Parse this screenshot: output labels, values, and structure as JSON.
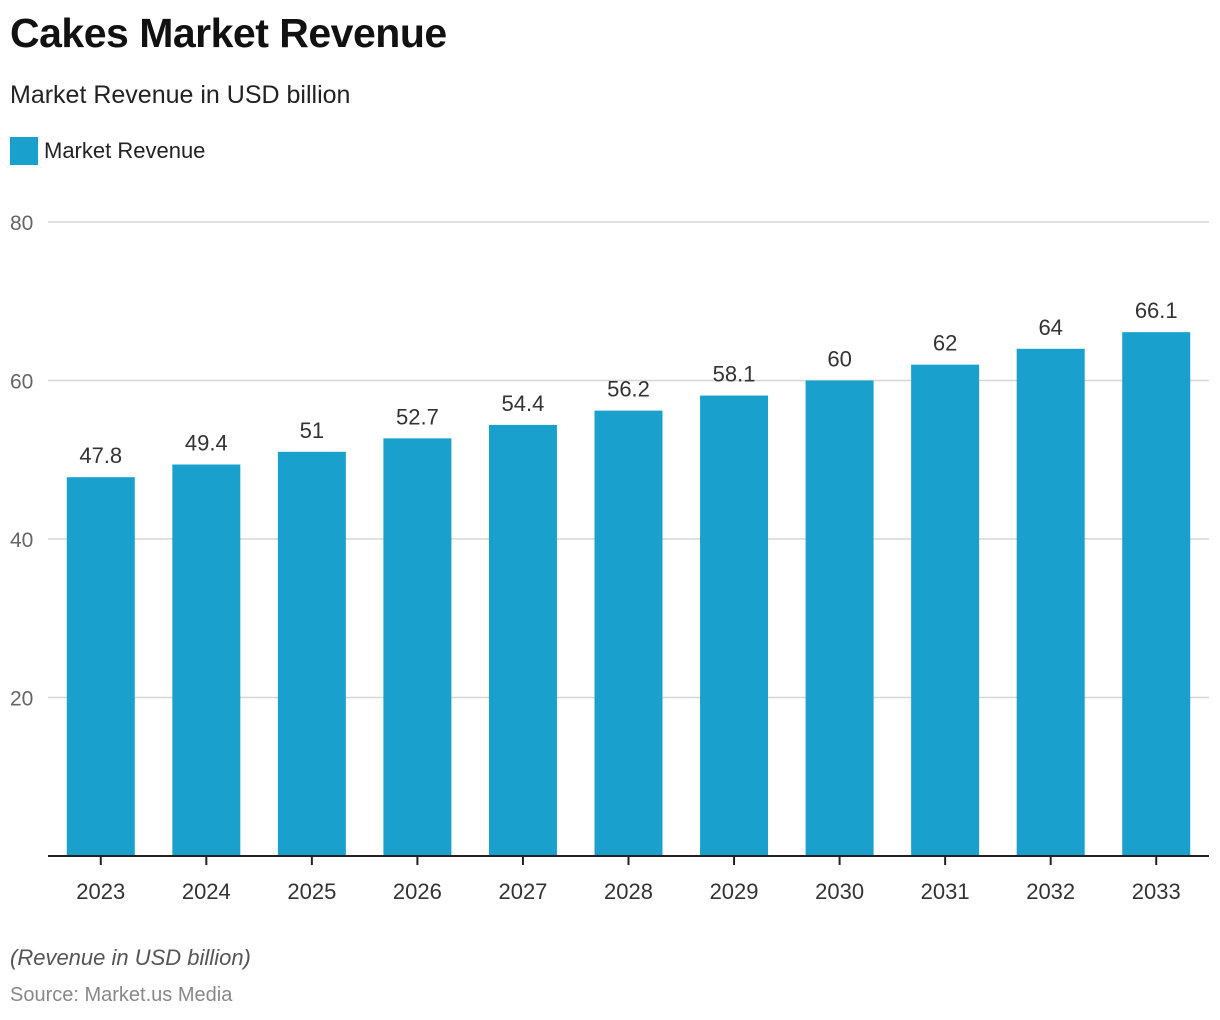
{
  "header": {
    "title": "Cakes Market Revenue",
    "subtitle": "Market Revenue in USD billion"
  },
  "legend": {
    "label": "Market Revenue",
    "color": "#1aa0cc"
  },
  "footer": {
    "note": "(Revenue in USD billion)",
    "source": "Source: Market.us Media"
  },
  "chart_data": {
    "type": "bar",
    "title": "Cakes Market Revenue",
    "subtitle": "Market Revenue in USD billion",
    "xlabel": "",
    "ylabel": "",
    "categories": [
      "2023",
      "2024",
      "2025",
      "2026",
      "2027",
      "2028",
      "2029",
      "2030",
      "2031",
      "2032",
      "2033"
    ],
    "series": [
      {
        "name": "Market Revenue",
        "color": "#1aa0cc",
        "values": [
          47.8,
          49.4,
          51,
          52.7,
          54.4,
          56.2,
          58.1,
          60,
          62,
          64,
          66.1
        ],
        "labels": [
          "47.8",
          "49.4",
          "51",
          "52.7",
          "54.4",
          "56.2",
          "58.1",
          "60",
          "62",
          "64",
          "66.1"
        ]
      }
    ],
    "ylim": [
      0,
      80
    ],
    "yticks": [
      20,
      40,
      60,
      80
    ],
    "grid": true,
    "legend_position": "top-left"
  }
}
